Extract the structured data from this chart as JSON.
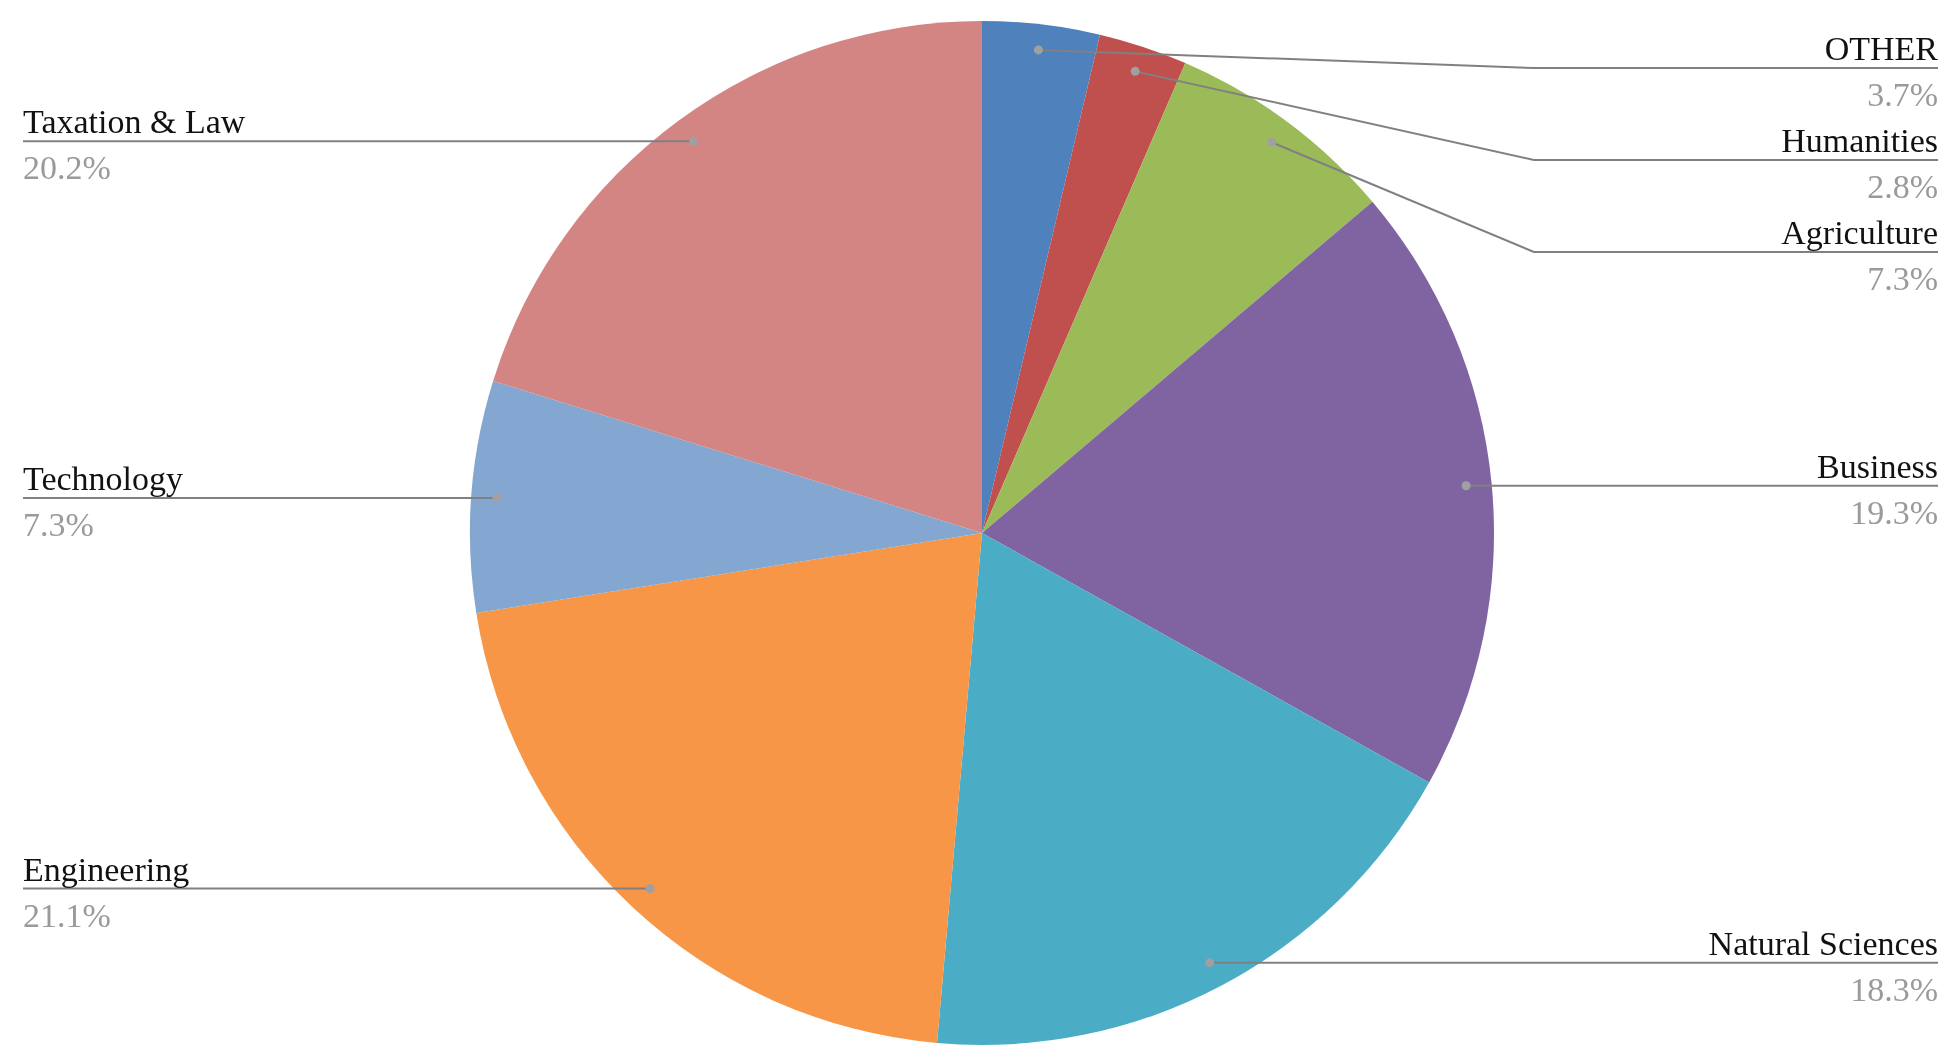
{
  "chart_data": {
    "type": "pie",
    "categories": [
      "OTHER",
      "Humanities",
      "Agriculture",
      "Business",
      "Natural Sciences",
      "Engineering",
      "Technology",
      "Taxation & Law"
    ],
    "values": [
      3.7,
      2.8,
      7.3,
      19.3,
      18.3,
      21.1,
      7.3,
      20.2
    ],
    "value_labels": [
      "3.7%",
      "2.8%",
      "7.3%",
      "19.3%",
      "18.3%",
      "21.1%",
      "7.3%",
      "20.2%"
    ],
    "colors": [
      "#4f81bd",
      "#c0504d",
      "#9bbb59",
      "#8064a2",
      "#4bacc6",
      "#f79646",
      "#84a7d1",
      "#d38584"
    ],
    "legend": false
  }
}
